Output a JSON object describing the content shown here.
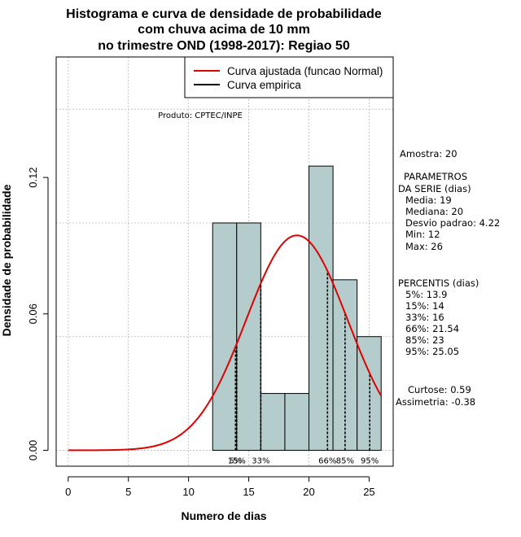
{
  "chart_data": {
    "type": "bar",
    "title": [
      "Histograma e curva de densidade de probabilidade",
      "com chuva acima de 10 mm",
      "no trimestre OND (1998-2017): Regiao 50"
    ],
    "xlabel": "Numero de dias",
    "ylabel": "Densidade de probabilidade",
    "xlim": [
      -1,
      27
    ],
    "ylim": [
      -0.007,
      0.173
    ],
    "xticks": [
      0,
      5,
      10,
      15,
      20,
      25
    ],
    "xtick_labels": [
      "0",
      "5",
      "10",
      "15",
      "20",
      "25"
    ],
    "yticks": [
      0.0,
      0.06,
      0.12
    ],
    "ytick_labels": [
      "0.00",
      "0.06",
      "0.12"
    ],
    "grid_x": [
      0,
      5,
      10,
      15,
      20,
      25
    ],
    "grid_y": [
      0.0,
      0.05,
      0.1,
      0.15
    ],
    "histogram": {
      "bins": [
        {
          "start": 12,
          "end": 14,
          "density": 0.1
        },
        {
          "start": 14,
          "end": 16,
          "density": 0.1
        },
        {
          "start": 16,
          "end": 18,
          "density": 0.025
        },
        {
          "start": 18,
          "end": 20,
          "density": 0.025
        },
        {
          "start": 20,
          "end": 22,
          "density": 0.125
        },
        {
          "start": 22,
          "end": 24,
          "density": 0.075
        },
        {
          "start": 24,
          "end": 26,
          "density": 0.05
        }
      ],
      "fill_color": "#b4cccc",
      "edge_color": "#000000"
    },
    "normal_curve": {
      "mean": 19,
      "sd": 4.22,
      "x_range": [
        0,
        26
      ],
      "color": "#e00000"
    },
    "percentile_lines": [
      {
        "label": "5%",
        "x": 13.9
      },
      {
        "label": "15%",
        "x": 14
      },
      {
        "label": "33%",
        "x": 16
      },
      {
        "label": "66%",
        "x": 21.54
      },
      {
        "label": "85%",
        "x": 23
      },
      {
        "label": "95%",
        "x": 25.05
      }
    ],
    "legend": {
      "position": "top-right",
      "entries": [
        {
          "label": "Curva ajustada (funcao Normal)",
          "color": "#e00000"
        },
        {
          "label": "Curva empirica",
          "color": "#000000"
        }
      ]
    },
    "product_label": "Produto: CPTEC/INPE"
  },
  "stats_panel": {
    "lines": [
      "Amostra: 20",
      "PARAMETROS",
      "DA SERIE (dias)",
      "Media: 19",
      "Mediana: 20",
      "Desvio padrao: 4.22",
      "Min: 12",
      "Max: 26",
      "PERCENTIS (dias)",
      "5%: 13.9",
      "15%: 14",
      "33%: 16",
      "66%: 21.54",
      "85%: 23",
      "95%: 25.05",
      "Curtose: 0.59",
      "Assimetria: -0.38"
    ]
  }
}
